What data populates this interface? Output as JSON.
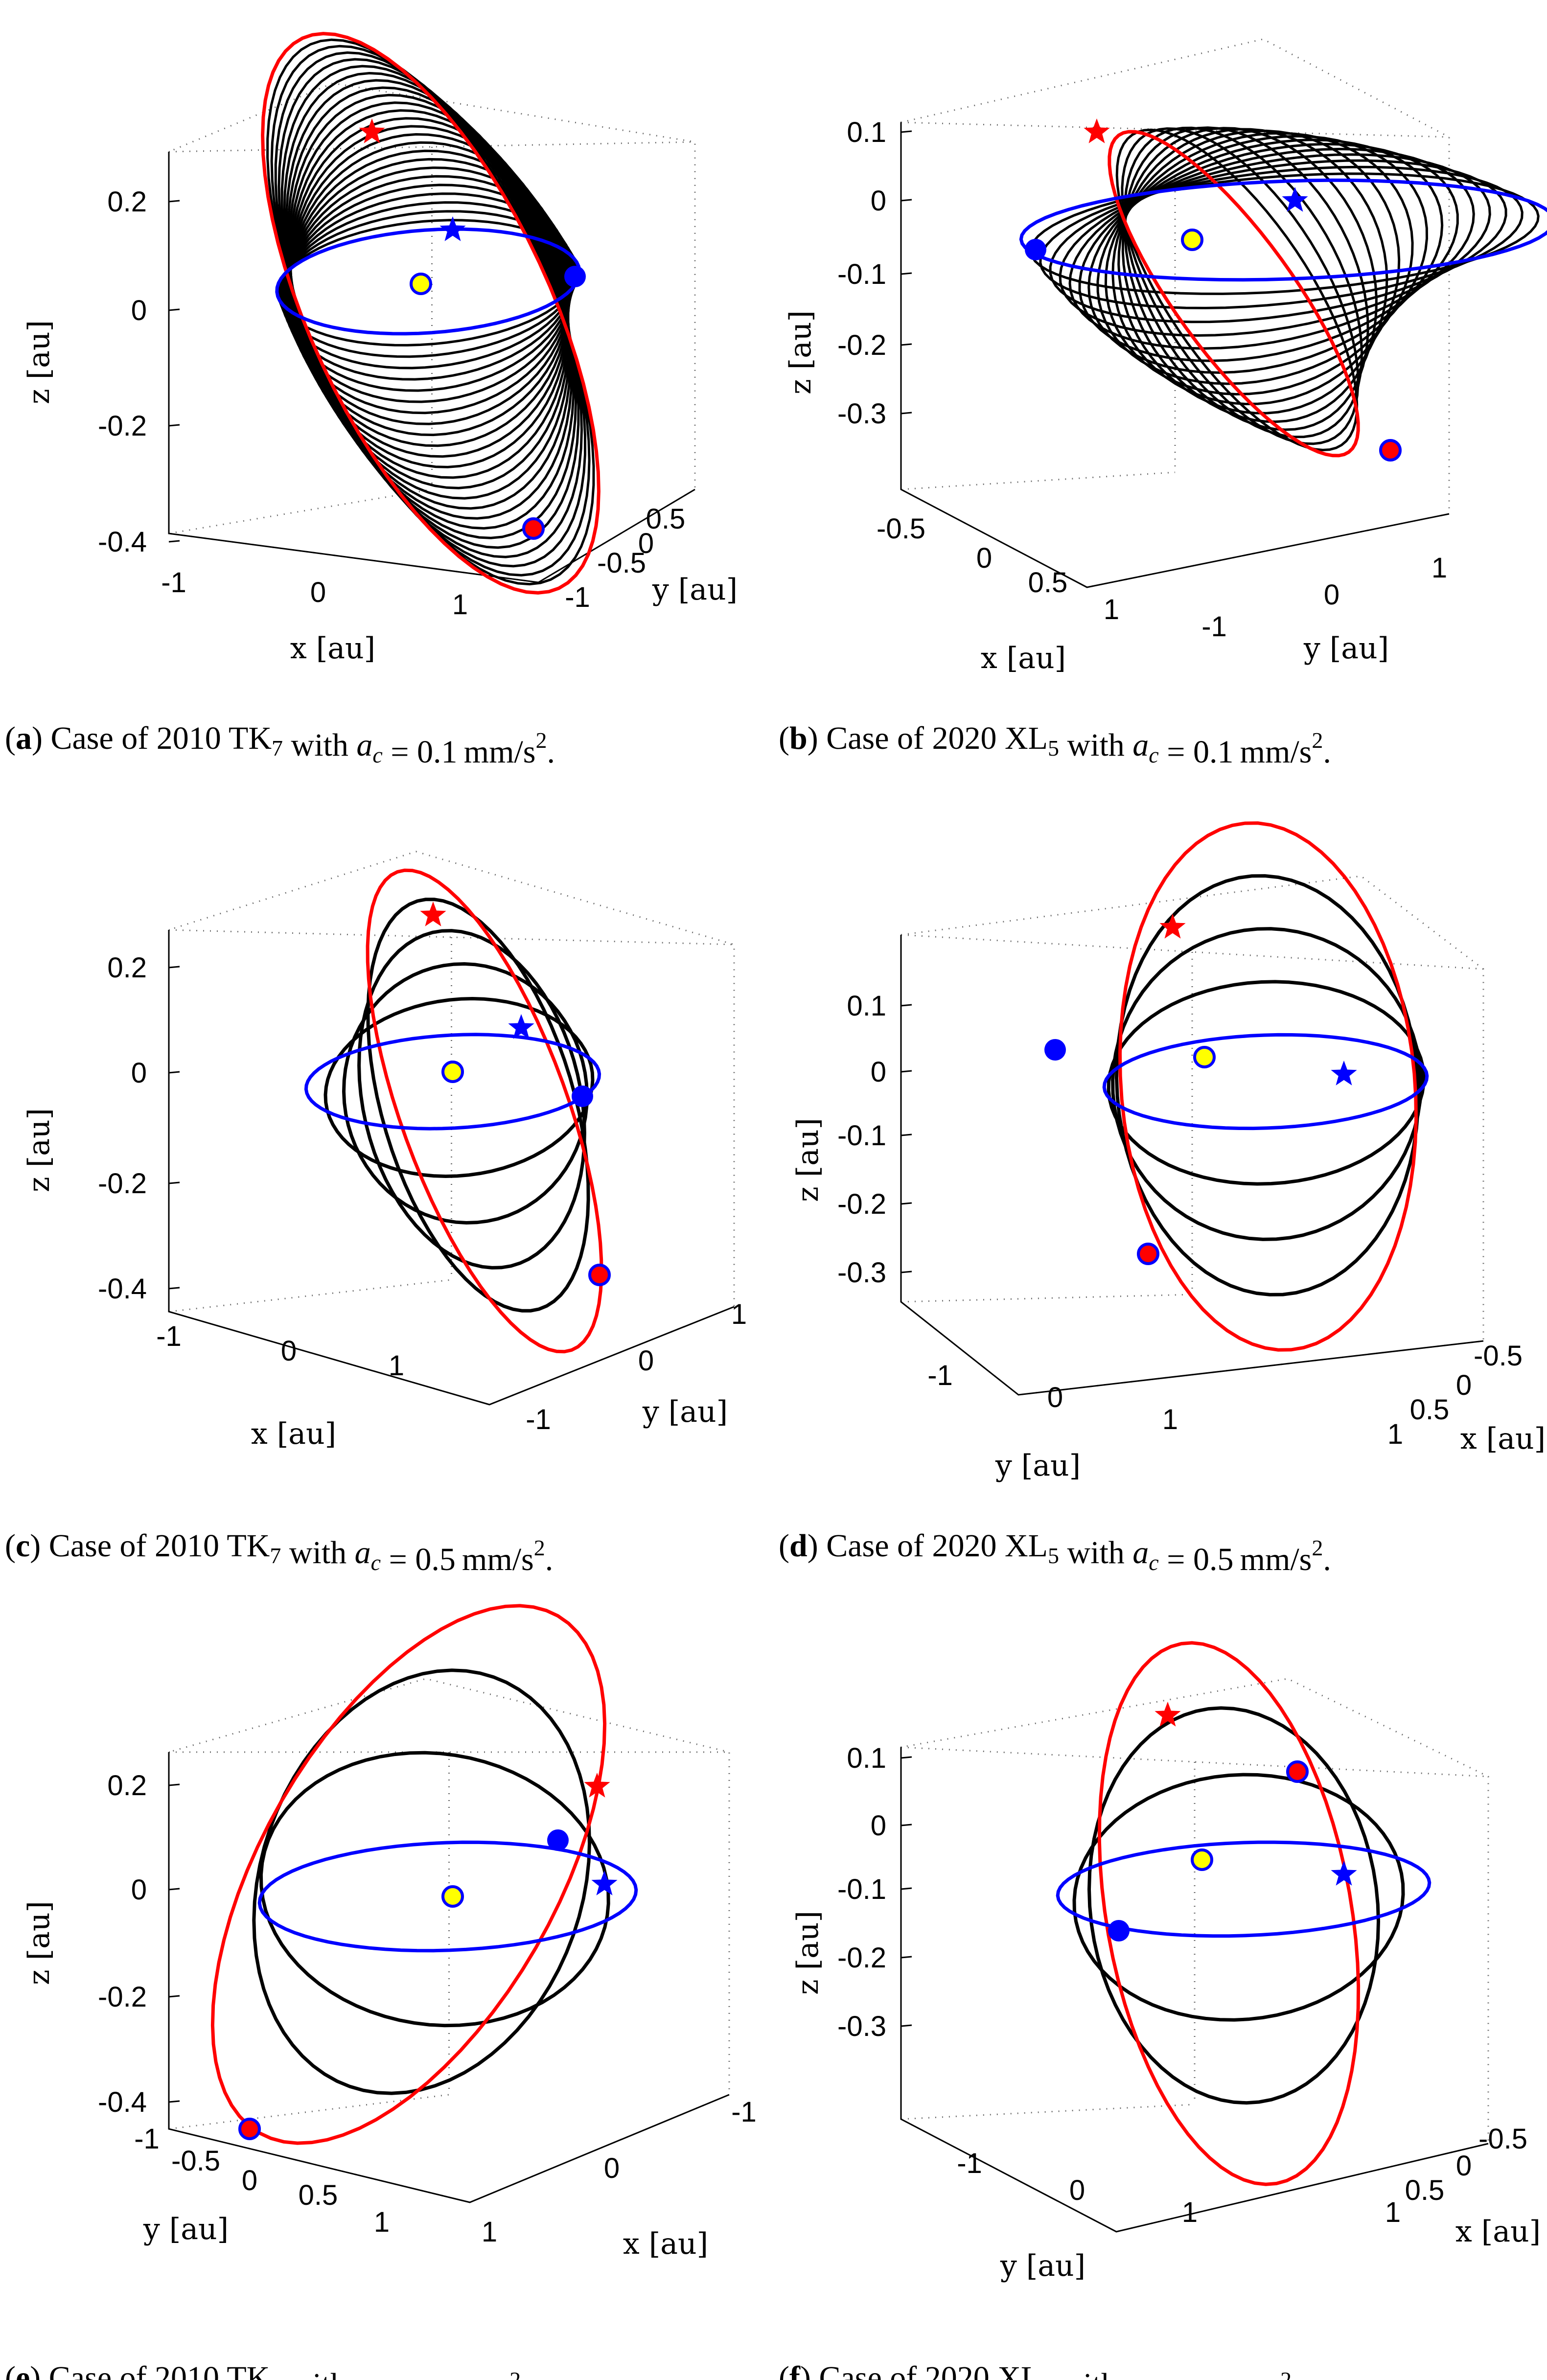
{
  "figure": {
    "panels": [
      {
        "id": "a",
        "caption": {
          "label": "a",
          "pre": "Case of 2010 TK",
          "sub": "7",
          "with": "with",
          "var": "a",
          "varsub": "c",
          "eq": "= 0.1 mm/s",
          "sup": "2",
          "end": "."
        },
        "chart_data": {
          "type": "3d-line",
          "object": "2010 TK7",
          "acceleration": "0.1 mm/s^2",
          "axes": {
            "x": {
              "label": "x [au]",
              "ticks": [
                "-1",
                "0",
                "1"
              ]
            },
            "y": {
              "label": "y [au]",
              "ticks": [
                "-1",
                "-0.5",
                "0",
                "0.5"
              ]
            },
            "z": {
              "label": "z [au]",
              "ticks": [
                "0.2",
                "0",
                "-0.2",
                "-0.4"
              ],
              "range": [
                -0.4,
                0.3
              ]
            }
          },
          "series": [
            {
              "name": "Earth orbit",
              "color": "#0000ff"
            },
            {
              "name": "target asteroid orbit",
              "color": "#ff0000"
            },
            {
              "name": "transfer trajectory",
              "color": "#000000",
              "revolutions": 24
            }
          ],
          "markers": [
            "Sun",
            "departure (Earth)",
            "arrival (asteroid)",
            "star markers"
          ]
        }
      },
      {
        "id": "b",
        "caption": {
          "label": "b",
          "pre": "Case of 2020 XL",
          "sub": "5",
          "with": "with",
          "var": "a",
          "varsub": "c",
          "eq": "= 0.1 mm/s",
          "sup": "2",
          "end": "."
        },
        "chart_data": {
          "type": "3d-line",
          "object": "2020 XL5",
          "acceleration": "0.1 mm/s^2",
          "axes": {
            "x": {
              "label": "x [au]",
              "ticks": [
                "-0.5",
                "0",
                "0.5",
                "1"
              ]
            },
            "y": {
              "label": "y [au]",
              "ticks": [
                "-1",
                "0",
                "1"
              ]
            },
            "z": {
              "label": "z [au]",
              "ticks": [
                "0.1",
                "0",
                "-0.1",
                "-0.2",
                "-0.3"
              ],
              "range": [
                -0.35,
                0.15
              ]
            }
          },
          "series": [
            {
              "name": "Earth orbit",
              "color": "#0000ff"
            },
            {
              "name": "target asteroid orbit",
              "color": "#ff0000"
            },
            {
              "name": "transfer trajectory",
              "color": "#000000",
              "revolutions": 16
            }
          ],
          "markers": [
            "Sun",
            "departure (Earth)",
            "arrival (asteroid)",
            "star markers"
          ]
        }
      },
      {
        "id": "c",
        "caption": {
          "label": "c",
          "pre": "Case of 2010 TK",
          "sub": "7",
          "with": "with",
          "var": "a",
          "varsub": "c",
          "eq": "= 0.5 mm/s",
          "sup": "2",
          "end": "."
        },
        "chart_data": {
          "type": "3d-line",
          "object": "2010 TK7",
          "acceleration": "0.5 mm/s^2",
          "axes": {
            "x": {
              "label": "x [au]",
              "ticks": [
                "-1",
                "0",
                "1"
              ]
            },
            "y": {
              "label": "y [au]",
              "ticks": [
                "-1",
                "0",
                "1"
              ]
            },
            "z": {
              "label": "z [au]",
              "ticks": [
                "0.2",
                "0",
                "-0.2",
                "-0.4"
              ],
              "range": [
                -0.4,
                0.3
              ]
            }
          },
          "series": [
            {
              "name": "Earth orbit",
              "color": "#0000ff"
            },
            {
              "name": "target asteroid orbit",
              "color": "#ff0000"
            },
            {
              "name": "transfer trajectory",
              "color": "#000000",
              "revolutions": 4
            }
          ],
          "markers": [
            "Sun",
            "departure (Earth)",
            "arrival (asteroid)",
            "star markers"
          ]
        }
      },
      {
        "id": "d",
        "caption": {
          "label": "d",
          "pre": "Case of 2020 XL",
          "sub": "5",
          "with": "with",
          "var": "a",
          "varsub": "c",
          "eq": "= 0.5 mm/s",
          "sup": "2",
          "end": "."
        },
        "chart_data": {
          "type": "3d-line",
          "object": "2020 XL5",
          "acceleration": "0.5 mm/s^2",
          "axes": {
            "x": {
              "label": "x [au]",
              "ticks": [
                "-0.5",
                "0",
                "0.5",
                "1"
              ]
            },
            "y": {
              "label": "y [au]",
              "ticks": [
                "-1",
                "0",
                "1"
              ]
            },
            "z": {
              "label": "z [au]",
              "ticks": [
                "0.1",
                "0",
                "-0.1",
                "-0.2",
                "-0.3"
              ],
              "range": [
                -0.35,
                0.15
              ]
            }
          },
          "series": [
            {
              "name": "Earth orbit",
              "color": "#0000ff"
            },
            {
              "name": "target asteroid orbit",
              "color": "#ff0000"
            },
            {
              "name": "transfer trajectory",
              "color": "#000000",
              "revolutions": 3
            }
          ],
          "markers": [
            "Sun",
            "departure (Earth)",
            "arrival (asteroid)",
            "star markers"
          ]
        }
      },
      {
        "id": "e",
        "caption": {
          "label": "e",
          "pre": "Case of 2010 TK",
          "sub": "7",
          "with": "with",
          "var": "a",
          "varsub": "c",
          "eq": "= 1 mm/s",
          "sup": "2",
          "end": "."
        },
        "chart_data": {
          "type": "3d-line",
          "object": "2010 TK7",
          "acceleration": "1 mm/s^2",
          "axes": {
            "x": {
              "label": "x [au]",
              "ticks": [
                "-1",
                "0",
                "1"
              ]
            },
            "y": {
              "label": "y [au]",
              "ticks": [
                "-1",
                "-0.5",
                "0",
                "0.5",
                "1"
              ]
            },
            "z": {
              "label": "z [au]",
              "ticks": [
                "0.2",
                "0",
                "-0.2",
                "-0.4"
              ],
              "range": [
                -0.4,
                0.3
              ]
            }
          },
          "series": [
            {
              "name": "Earth orbit",
              "color": "#0000ff"
            },
            {
              "name": "target asteroid orbit",
              "color": "#ff0000"
            },
            {
              "name": "transfer trajectory",
              "color": "#000000",
              "revolutions": 2
            }
          ],
          "markers": [
            "Sun",
            "departure (Earth)",
            "arrival (asteroid)",
            "star markers"
          ]
        }
      },
      {
        "id": "f",
        "caption": {
          "label": "f",
          "pre": "Case of 2020 XL",
          "sub": "5",
          "with": "with",
          "var": "a",
          "varsub": "c",
          "eq": "= 1 mm/s",
          "sup": "2",
          "end": "."
        },
        "chart_data": {
          "type": "3d-line",
          "object": "2020 XL5",
          "acceleration": "1 mm/s^2",
          "axes": {
            "x": {
              "label": "x [au]",
              "ticks": [
                "-0.5",
                "0",
                "0.5",
                "1"
              ]
            },
            "y": {
              "label": "y [au]",
              "ticks": [
                "-1",
                "0",
                "1"
              ]
            },
            "z": {
              "label": "z [au]",
              "ticks": [
                "0.1",
                "0",
                "-0.1",
                "-0.2",
                "-0.3"
              ],
              "range": [
                -0.35,
                0.15
              ]
            }
          },
          "series": [
            {
              "name": "Earth orbit",
              "color": "#0000ff"
            },
            {
              "name": "target asteroid orbit",
              "color": "#ff0000"
            },
            {
              "name": "transfer trajectory",
              "color": "#000000",
              "revolutions": 2
            }
          ],
          "markers": [
            "Sun",
            "departure (Earth)",
            "arrival (asteroid)",
            "star markers"
          ]
        }
      }
    ],
    "colors": {
      "earth": "#0000ff",
      "asteroid": "#ff0000",
      "transfer": "#000000",
      "sun_fill": "#ffff00",
      "grid": "#6a6a6a"
    }
  }
}
